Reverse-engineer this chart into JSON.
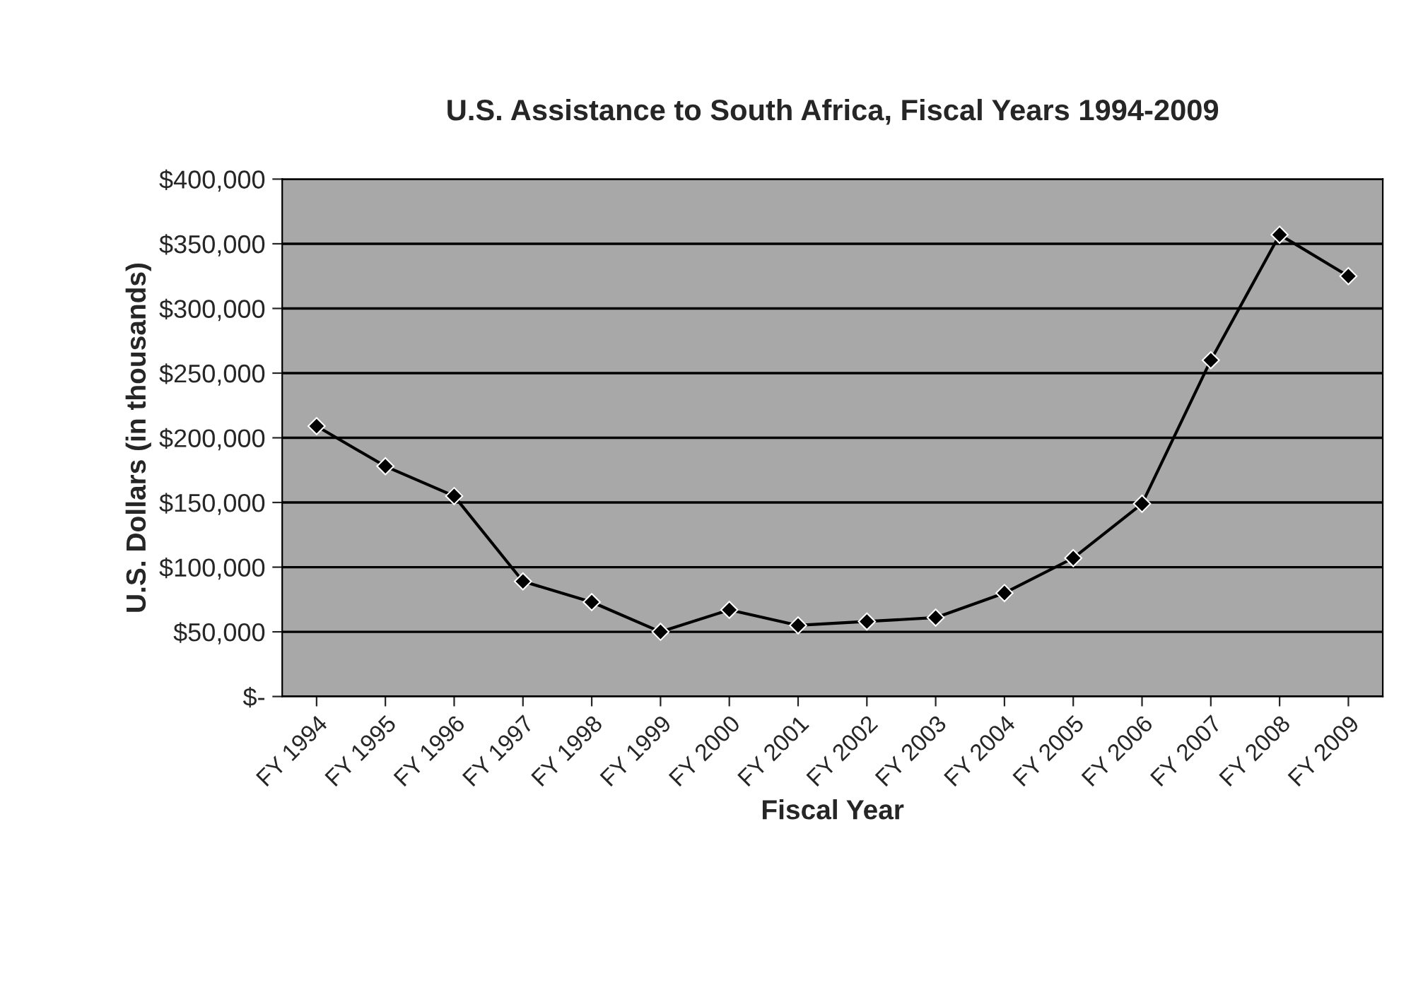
{
  "chart_data": {
    "type": "line",
    "title": "U.S. Assistance to South Africa, Fiscal Years 1994-2009",
    "xlabel": "Fiscal Year",
    "ylabel": "U.S. Dollars (in thousands)",
    "categories": [
      "FY 1994",
      "FY 1995",
      "FY 1996",
      "FY 1997",
      "FY 1998",
      "FY 1999",
      "FY 2000",
      "FY 2001",
      "FY 2002",
      "FY 2003",
      "FY 2004",
      "FY 2005",
      "FY 2006",
      "FY 2007",
      "FY 2008",
      "FY 2009"
    ],
    "series": [
      {
        "color": "#000000",
        "values": [
          209000,
          178000,
          155000,
          89000,
          73000,
          50000,
          67000,
          55000,
          58000,
          61000,
          80000,
          107000,
          149000,
          260000,
          357000,
          325000
        ]
      }
    ],
    "ylim": [
      0,
      400000
    ],
    "yticks": [
      {
        "value": 0,
        "label": "$-"
      },
      {
        "value": 50000,
        "label": "$50,000"
      },
      {
        "value": 100000,
        "label": "$100,000"
      },
      {
        "value": 150000,
        "label": "$150,000"
      },
      {
        "value": 200000,
        "label": "$200,000"
      },
      {
        "value": 250000,
        "label": "$250,000"
      },
      {
        "value": 300000,
        "label": "$300,000"
      },
      {
        "value": 350000,
        "label": "$350,000"
      },
      {
        "value": 400000,
        "label": "$400,000"
      }
    ],
    "grid": "y",
    "marker": "diamond",
    "line_style": "solid",
    "legend": false
  }
}
